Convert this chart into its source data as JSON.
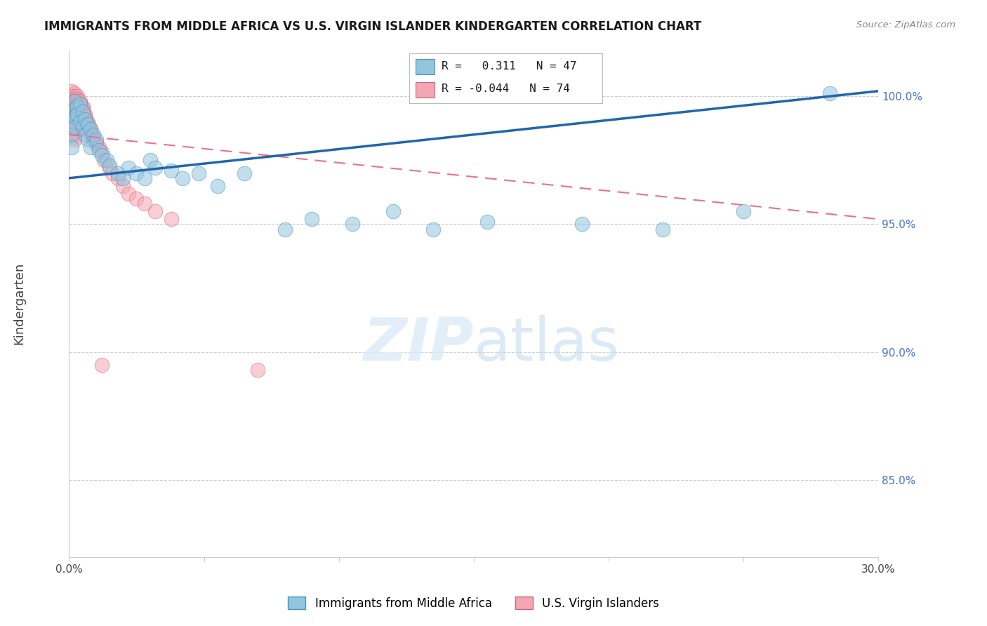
{
  "title": "IMMIGRANTS FROM MIDDLE AFRICA VS U.S. VIRGIN ISLANDER KINDERGARTEN CORRELATION CHART",
  "source": "Source: ZipAtlas.com",
  "ylabel": "Kindergarten",
  "xlim": [
    0.0,
    0.3
  ],
  "ylim": [
    0.82,
    1.018
  ],
  "ytick_values": [
    0.85,
    0.9,
    0.95,
    1.0
  ],
  "xtick_positions": [
    0.0,
    0.05,
    0.1,
    0.15,
    0.2,
    0.25,
    0.3
  ],
  "blue_R": 0.311,
  "blue_N": 47,
  "pink_R": -0.044,
  "pink_N": 74,
  "blue_scatter_color": "#92c5de",
  "blue_edge_color": "#4393c3",
  "pink_scatter_color": "#f4a6b2",
  "pink_edge_color": "#d6617a",
  "blue_line_color": "#2166ac",
  "pink_line_color": "#e8728e",
  "blue_trend_y": [
    0.968,
    1.002
  ],
  "pink_trend_y": [
    0.985,
    0.952
  ],
  "legend_label_blue": "Immigrants from Middle Africa",
  "legend_label_pink": "U.S. Virgin Islanders",
  "grid_color": "#cccccc",
  "blue_x": [
    0.001,
    0.001,
    0.001,
    0.002,
    0.002,
    0.002,
    0.002,
    0.003,
    0.003,
    0.004,
    0.004,
    0.005,
    0.005,
    0.006,
    0.006,
    0.007,
    0.007,
    0.008,
    0.008,
    0.009,
    0.01,
    0.011,
    0.012,
    0.014,
    0.015,
    0.018,
    0.02,
    0.022,
    0.025,
    0.028,
    0.03,
    0.032,
    0.038,
    0.042,
    0.048,
    0.055,
    0.065,
    0.08,
    0.09,
    0.105,
    0.12,
    0.135,
    0.155,
    0.19,
    0.22,
    0.25,
    0.282
  ],
  "blue_y": [
    0.99,
    0.985,
    0.98,
    0.998,
    0.995,
    0.992,
    0.988,
    0.996,
    0.993,
    0.997,
    0.99,
    0.994,
    0.988,
    0.991,
    0.985,
    0.989,
    0.983,
    0.987,
    0.98,
    0.985,
    0.983,
    0.979,
    0.977,
    0.975,
    0.973,
    0.97,
    0.968,
    0.972,
    0.97,
    0.968,
    0.975,
    0.972,
    0.971,
    0.968,
    0.97,
    0.965,
    0.97,
    0.948,
    0.952,
    0.95,
    0.955,
    0.948,
    0.951,
    0.95,
    0.948,
    0.955,
    1.001
  ],
  "pink_x": [
    0.001,
    0.001,
    0.001,
    0.001,
    0.001,
    0.001,
    0.002,
    0.002,
    0.002,
    0.002,
    0.002,
    0.002,
    0.002,
    0.002,
    0.002,
    0.002,
    0.002,
    0.002,
    0.002,
    0.002,
    0.002,
    0.002,
    0.002,
    0.002,
    0.002,
    0.003,
    0.003,
    0.003,
    0.003,
    0.003,
    0.003,
    0.003,
    0.003,
    0.003,
    0.003,
    0.003,
    0.003,
    0.004,
    0.004,
    0.004,
    0.004,
    0.004,
    0.005,
    0.005,
    0.005,
    0.005,
    0.005,
    0.006,
    0.006,
    0.006,
    0.007,
    0.007,
    0.007,
    0.008,
    0.008,
    0.008,
    0.009,
    0.009,
    0.01,
    0.01,
    0.011,
    0.012,
    0.013,
    0.015,
    0.016,
    0.018,
    0.02,
    0.022,
    0.025,
    0.028,
    0.032,
    0.038,
    0.07,
    0.012
  ],
  "pink_y": [
    1.002,
    1.0,
    0.999,
    0.998,
    0.997,
    0.996,
    1.001,
    1.0,
    0.999,
    0.998,
    0.997,
    0.996,
    0.995,
    0.994,
    0.993,
    0.992,
    0.991,
    0.99,
    0.989,
    0.988,
    0.987,
    0.986,
    0.985,
    0.984,
    0.983,
    1.0,
    0.999,
    0.998,
    0.997,
    0.996,
    0.995,
    0.994,
    0.993,
    0.992,
    0.991,
    0.99,
    0.989,
    0.998,
    0.997,
    0.996,
    0.995,
    0.994,
    0.996,
    0.995,
    0.994,
    0.993,
    0.992,
    0.993,
    0.992,
    0.991,
    0.99,
    0.989,
    0.988,
    0.987,
    0.986,
    0.985,
    0.984,
    0.983,
    0.982,
    0.981,
    0.98,
    0.978,
    0.975,
    0.972,
    0.97,
    0.968,
    0.965,
    0.962,
    0.96,
    0.958,
    0.955,
    0.952,
    0.893,
    0.895
  ]
}
